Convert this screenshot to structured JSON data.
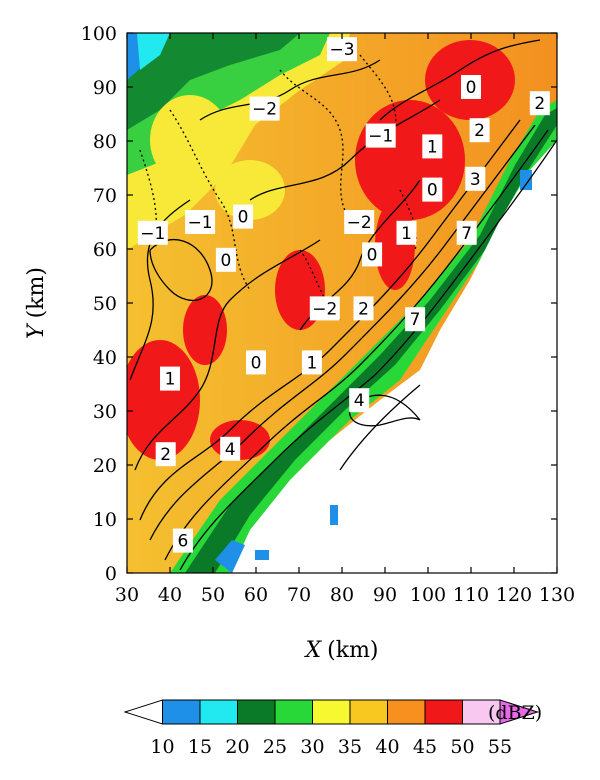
{
  "chart_data": {
    "type": "heatmap",
    "title": "",
    "xlabel_symbol": "X",
    "xlabel_unit": "(km)",
    "ylabel_symbol": "Y",
    "ylabel_unit": "(km)",
    "xlim": [
      30,
      130
    ],
    "ylim": [
      0,
      100
    ],
    "x_ticks": [
      "30",
      "40",
      "50",
      "60",
      "70",
      "80",
      "90",
      "100",
      "110",
      "120",
      "130"
    ],
    "y_ticks": [
      "0",
      "10",
      "20",
      "30",
      "40",
      "50",
      "60",
      "70",
      "80",
      "90",
      "100"
    ],
    "colorbar": {
      "unit": "(dBZ)",
      "levels": [
        "10",
        "15",
        "20",
        "25",
        "30",
        "35",
        "40",
        "45",
        "50",
        "55"
      ],
      "colors": [
        "#ffffff",
        "#1e90e8",
        "#22e8f0",
        "#0a7a28",
        "#28d838",
        "#f8f830",
        "#f8c820",
        "#f89020",
        "#f01818",
        "#f8c8f0",
        "#e868e8"
      ]
    },
    "contour_labels": [
      {
        "text": "−3",
        "x": 80,
        "y": 97
      },
      {
        "text": "0",
        "x": 110,
        "y": 90
      },
      {
        "text": "2",
        "x": 126,
        "y": 87
      },
      {
        "text": "−2",
        "x": 62,
        "y": 86
      },
      {
        "text": "−1",
        "x": 89,
        "y": 81
      },
      {
        "text": "2",
        "x": 112,
        "y": 82
      },
      {
        "text": "1",
        "x": 101,
        "y": 79
      },
      {
        "text": "0",
        "x": 101,
        "y": 71
      },
      {
        "text": "3",
        "x": 111,
        "y": 73
      },
      {
        "text": "0",
        "x": 57,
        "y": 66
      },
      {
        "text": "−1",
        "x": 36,
        "y": 63
      },
      {
        "text": "−1",
        "x": 47,
        "y": 65
      },
      {
        "text": "−2",
        "x": 84,
        "y": 65
      },
      {
        "text": "1",
        "x": 95,
        "y": 63
      },
      {
        "text": "7",
        "x": 109,
        "y": 63
      },
      {
        "text": "0",
        "x": 53,
        "y": 58
      },
      {
        "text": "0",
        "x": 87,
        "y": 59
      },
      {
        "text": "−2",
        "x": 76,
        "y": 49
      },
      {
        "text": "2",
        "x": 85,
        "y": 49
      },
      {
        "text": "7",
        "x": 97,
        "y": 47
      },
      {
        "text": "0",
        "x": 60,
        "y": 39
      },
      {
        "text": "1",
        "x": 73,
        "y": 39
      },
      {
        "text": "1",
        "x": 40,
        "y": 36
      },
      {
        "text": "4",
        "x": 84,
        "y": 32
      },
      {
        "text": "2",
        "x": 39,
        "y": 22
      },
      {
        "text": "4",
        "x": 54,
        "y": 23
      },
      {
        "text": "6",
        "x": 43,
        "y": 6
      }
    ]
  }
}
